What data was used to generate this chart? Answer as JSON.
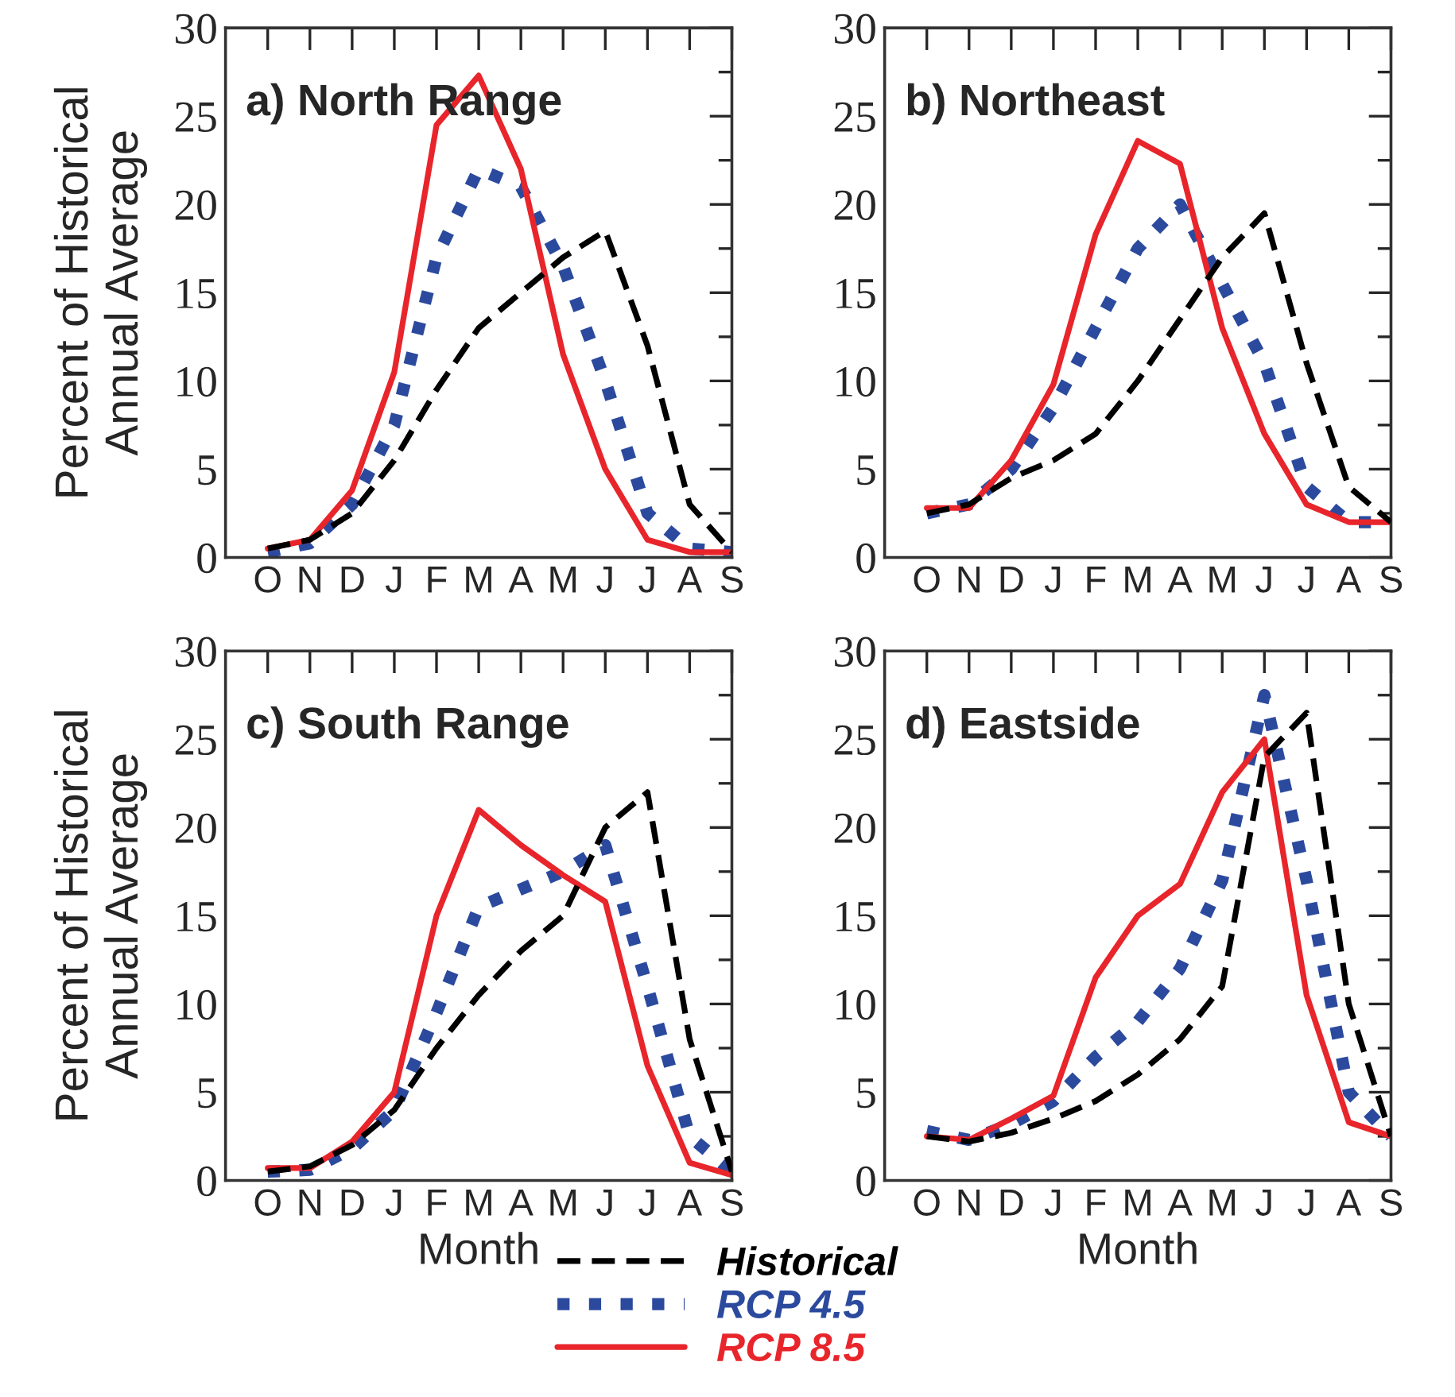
{
  "chart_data": [
    {
      "type": "line",
      "title": "a) North Range",
      "ylabel": "Percent of Historical\nAnnual Average",
      "categories": [
        "O",
        "N",
        "D",
        "J",
        "F",
        "M",
        "A",
        "M",
        "J",
        "J",
        "A",
        "S"
      ],
      "ylim": [
        0,
        30
      ],
      "yticks": [
        0,
        5,
        10,
        15,
        20,
        25,
        30
      ],
      "grid": false,
      "legend": false,
      "series": [
        {
          "color": "#000000",
          "line_style": "dashed",
          "values": [
            0.5,
            1,
            2.5,
            5.5,
            9.5,
            13,
            15,
            17,
            18.5,
            12,
            3,
            0.3
          ]
        },
        {
          "color": "#2b4a9e",
          "line_style": "dotted",
          "values": [
            0.3,
            0.8,
            3,
            7.5,
            17,
            22,
            21,
            16.5,
            10,
            2.5,
            0.5,
            0.3
          ]
        },
        {
          "color": "#e8252b",
          "line_style": "solid",
          "values": [
            0.5,
            1,
            3.8,
            10.5,
            24.5,
            27.3,
            22,
            11.5,
            5,
            1,
            0.3,
            0.3
          ]
        }
      ]
    },
    {
      "type": "line",
      "title": "b) Northeast",
      "categories": [
        "O",
        "N",
        "D",
        "J",
        "F",
        "M",
        "A",
        "M",
        "J",
        "J",
        "A",
        "S"
      ],
      "ylim": [
        0,
        30
      ],
      "yticks": [
        0,
        5,
        10,
        15,
        20,
        25,
        30
      ],
      "grid": false,
      "legend": false,
      "series": [
        {
          "color": "#000000",
          "line_style": "dashed",
          "values": [
            2.5,
            3,
            4.5,
            5.5,
            7,
            10,
            13.5,
            17,
            19.5,
            11,
            4,
            2
          ]
        },
        {
          "color": "#2b4a9e",
          "line_style": "dotted",
          "values": [
            2.5,
            3,
            5,
            8.5,
            13,
            17.5,
            20,
            15.5,
            11,
            4,
            2,
            2
          ]
        },
        {
          "color": "#e8252b",
          "line_style": "solid",
          "values": [
            2.8,
            2.8,
            5.5,
            9.8,
            18.3,
            23.6,
            22.3,
            13,
            7,
            3,
            2,
            2
          ]
        }
      ]
    },
    {
      "type": "line",
      "title": "c) South Range",
      "ylabel": "Percent of Historical\nAnnual Average",
      "xlabel": "Month",
      "categories": [
        "O",
        "N",
        "D",
        "J",
        "F",
        "M",
        "A",
        "M",
        "J",
        "J",
        "A",
        "S"
      ],
      "ylim": [
        0,
        30
      ],
      "yticks": [
        0,
        5,
        10,
        15,
        20,
        25,
        30
      ],
      "grid": false,
      "legend": false,
      "series": [
        {
          "color": "#000000",
          "line_style": "dashed",
          "values": [
            0.5,
            0.8,
            2,
            4,
            7.5,
            10.5,
            13,
            15,
            20,
            22,
            8,
            0.5
          ]
        },
        {
          "color": "#2b4a9e",
          "line_style": "dotted",
          "values": [
            0.5,
            0.6,
            1.8,
            4,
            9.5,
            15.5,
            16.5,
            17.5,
            19,
            11,
            2.5,
            0.5
          ]
        },
        {
          "color": "#e8252b",
          "line_style": "solid",
          "values": [
            0.7,
            0.7,
            2.2,
            5,
            15,
            21,
            19,
            17.3,
            15.8,
            6.5,
            1,
            0.3
          ]
        }
      ]
    },
    {
      "type": "line",
      "title": "d) Eastside",
      "xlabel": "Month",
      "categories": [
        "O",
        "N",
        "D",
        "J",
        "F",
        "M",
        "A",
        "M",
        "J",
        "J",
        "A",
        "S"
      ],
      "ylim": [
        0,
        30
      ],
      "yticks": [
        0,
        5,
        10,
        15,
        20,
        25,
        30
      ],
      "grid": false,
      "legend": "bottom",
      "series": [
        {
          "name": "Historical",
          "color": "#000000",
          "line_style": "dashed",
          "values": [
            2.5,
            2.2,
            2.7,
            3.5,
            4.5,
            6,
            8,
            11,
            24,
            26.5,
            10,
            2.5
          ]
        },
        {
          "name": "RCP 4.5",
          "color": "#2b4a9e",
          "line_style": "dotted",
          "values": [
            2.8,
            2.3,
            3.2,
            4.5,
            7,
            9,
            12,
            17,
            27.5,
            17,
            5,
            2.5
          ]
        },
        {
          "name": "RCP 8.5",
          "color": "#e8252b",
          "line_style": "solid",
          "values": [
            2.5,
            2.3,
            3.5,
            4.8,
            11.5,
            15,
            16.8,
            22,
            25,
            10.5,
            3.3,
            2.5
          ]
        }
      ]
    }
  ]
}
